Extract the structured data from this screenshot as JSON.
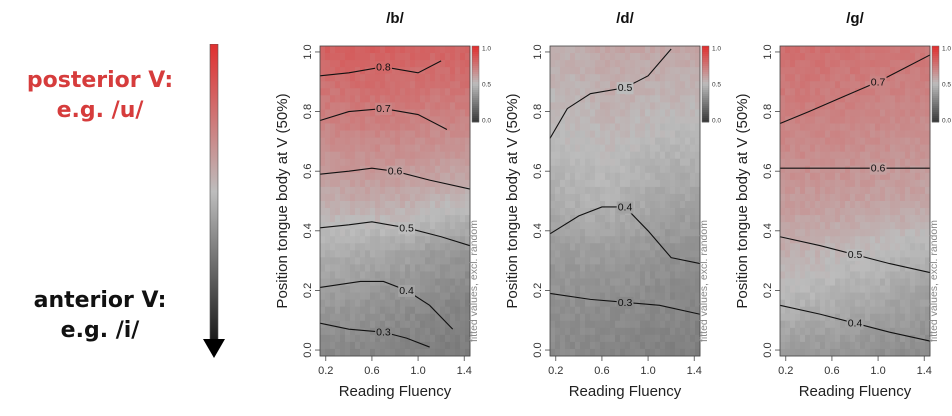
{
  "sidebar": {
    "posterior_line1": "posterior V:",
    "posterior_line2": "e.g. /u/",
    "anterior_line1": "anterior V:",
    "anterior_line2": "e.g. /i/",
    "posterior_color": "#d63c3c",
    "anterior_color": "#111111"
  },
  "chart_data": [
    {
      "type": "heatmap",
      "title": "/b/",
      "xlabel": "Reading Fluency",
      "ylabel": "Position tongue body at V (50%)",
      "colorbar_label": "fitted values, excl. random",
      "colorbar_ticks": [
        "1.0",
        "0.5",
        "0.0"
      ],
      "xlim": [
        0.15,
        1.45
      ],
      "ylim": [
        -0.02,
        1.02
      ],
      "xticks": [
        0.2,
        0.6,
        1.0,
        1.4
      ],
      "yticks": [
        0.0,
        0.2,
        0.4,
        0.6,
        0.8,
        1.0
      ],
      "colorscale": [
        "#3a3a3a",
        "#bcbcbc",
        "#e03030"
      ],
      "field": [
        [
          0.3,
          0.29,
          0.28,
          0.27,
          0.26,
          0.25
        ],
        [
          0.37,
          0.36,
          0.34,
          0.32,
          0.3,
          0.28
        ],
        [
          0.44,
          0.44,
          0.42,
          0.4,
          0.37,
          0.35
        ],
        [
          0.55,
          0.57,
          0.57,
          0.56,
          0.53,
          0.52
        ],
        [
          0.65,
          0.67,
          0.67,
          0.66,
          0.65,
          0.64
        ],
        [
          0.74,
          0.76,
          0.76,
          0.75,
          0.74,
          0.74
        ],
        [
          0.83,
          0.84,
          0.83,
          0.82,
          0.82,
          0.83
        ]
      ],
      "contours": [
        {
          "label": "0.8",
          "points": [
            [
              0.15,
              0.92
            ],
            [
              0.4,
              0.93
            ],
            [
              0.7,
              0.95
            ],
            [
              1.0,
              0.93
            ],
            [
              1.2,
              0.97
            ]
          ]
        },
        {
          "label": "0.7",
          "points": [
            [
              0.15,
              0.77
            ],
            [
              0.4,
              0.8
            ],
            [
              0.7,
              0.81
            ],
            [
              1.0,
              0.79
            ],
            [
              1.25,
              0.74
            ]
          ]
        },
        {
          "label": "0.6",
          "points": [
            [
              0.15,
              0.59
            ],
            [
              0.4,
              0.6
            ],
            [
              0.6,
              0.61
            ],
            [
              0.8,
              0.6
            ],
            [
              1.1,
              0.57
            ],
            [
              1.45,
              0.54
            ]
          ]
        },
        {
          "label": "0.5",
          "points": [
            [
              0.15,
              0.41
            ],
            [
              0.4,
              0.42
            ],
            [
              0.6,
              0.43
            ],
            [
              0.9,
              0.41
            ],
            [
              1.2,
              0.38
            ],
            [
              1.45,
              0.35
            ]
          ]
        },
        {
          "label": "0.4",
          "points": [
            [
              0.15,
              0.21
            ],
            [
              0.5,
              0.23
            ],
            [
              0.7,
              0.23
            ],
            [
              0.9,
              0.2
            ],
            [
              1.1,
              0.15
            ],
            [
              1.3,
              0.07
            ]
          ]
        },
        {
          "label": "0.3",
          "points": [
            [
              0.15,
              0.09
            ],
            [
              0.4,
              0.07
            ],
            [
              0.7,
              0.06
            ],
            [
              0.9,
              0.04
            ],
            [
              1.1,
              0.01
            ]
          ]
        }
      ]
    },
    {
      "type": "heatmap",
      "title": "/d/",
      "xlabel": "Reading Fluency",
      "ylabel": "Position tongue body at V (50%)",
      "colorbar_label": "fitted values, excl. random",
      "colorbar_ticks": [
        "1.0",
        "0.5",
        "0.0"
      ],
      "xlim": [
        0.15,
        1.45
      ],
      "ylim": [
        -0.02,
        1.02
      ],
      "xticks": [
        0.2,
        0.6,
        1.0,
        1.4
      ],
      "yticks": [
        0.0,
        0.2,
        0.4,
        0.6,
        0.8,
        1.0
      ],
      "colorscale": [
        "#3a3a3a",
        "#bcbcbc",
        "#e03030"
      ],
      "field": [
        [
          0.31,
          0.3,
          0.29,
          0.28,
          0.27,
          0.26
        ],
        [
          0.33,
          0.33,
          0.32,
          0.31,
          0.3,
          0.29
        ],
        [
          0.37,
          0.38,
          0.38,
          0.36,
          0.34,
          0.33
        ],
        [
          0.44,
          0.46,
          0.46,
          0.43,
          0.41,
          0.4
        ],
        [
          0.49,
          0.5,
          0.51,
          0.49,
          0.47,
          0.47
        ],
        [
          0.52,
          0.53,
          0.55,
          0.54,
          0.53,
          0.53
        ],
        [
          0.55,
          0.56,
          0.58,
          0.58,
          0.58,
          0.58
        ]
      ],
      "contours": [
        {
          "label": "0.5",
          "points": [
            [
              0.15,
              0.71
            ],
            [
              0.3,
              0.81
            ],
            [
              0.5,
              0.86
            ],
            [
              0.8,
              0.88
            ],
            [
              1.0,
              0.92
            ],
            [
              1.2,
              1.01
            ]
          ]
        },
        {
          "label": "0.4",
          "points": [
            [
              0.15,
              0.39
            ],
            [
              0.4,
              0.45
            ],
            [
              0.6,
              0.48
            ],
            [
              0.8,
              0.48
            ],
            [
              1.0,
              0.4
            ],
            [
              1.2,
              0.31
            ],
            [
              1.45,
              0.29
            ]
          ]
        },
        {
          "label": "0.3",
          "points": [
            [
              0.15,
              0.19
            ],
            [
              0.5,
              0.17
            ],
            [
              0.8,
              0.16
            ],
            [
              1.1,
              0.15
            ],
            [
              1.45,
              0.12
            ]
          ]
        }
      ]
    },
    {
      "type": "heatmap",
      "title": "/g/",
      "xlabel": "Reading Fluency",
      "ylabel": "Position tongue body at V (50%)",
      "colorbar_label": "fitted values, excl. random",
      "colorbar_ticks": [
        "1.0",
        "0.5",
        "0.0"
      ],
      "xlim": [
        0.15,
        1.45
      ],
      "ylim": [
        -0.02,
        1.02
      ],
      "xticks": [
        0.2,
        0.6,
        1.0,
        1.4
      ],
      "yticks": [
        0.0,
        0.2,
        0.4,
        0.6,
        0.8,
        1.0
      ],
      "colorscale": [
        "#3a3a3a",
        "#bcbcbc",
        "#e03030"
      ],
      "field": [
        [
          0.37,
          0.36,
          0.35,
          0.33,
          0.32,
          0.31
        ],
        [
          0.47,
          0.46,
          0.44,
          0.42,
          0.4,
          0.38
        ],
        [
          0.55,
          0.54,
          0.52,
          0.5,
          0.48,
          0.46
        ],
        [
          0.62,
          0.62,
          0.61,
          0.6,
          0.59,
          0.58
        ],
        [
          0.68,
          0.68,
          0.67,
          0.66,
          0.65,
          0.64
        ],
        [
          0.73,
          0.73,
          0.72,
          0.71,
          0.7,
          0.7
        ],
        [
          0.78,
          0.78,
          0.77,
          0.76,
          0.75,
          0.75
        ]
      ],
      "contours": [
        {
          "label": "0.7",
          "points": [
            [
              0.15,
              0.76
            ],
            [
              0.4,
              0.8
            ],
            [
              0.7,
              0.85
            ],
            [
              1.0,
              0.9
            ],
            [
              1.2,
              0.94
            ],
            [
              1.45,
              0.99
            ]
          ]
        },
        {
          "label": "0.6",
          "points": [
            [
              0.15,
              0.61
            ],
            [
              0.6,
              0.61
            ],
            [
              1.0,
              0.61
            ],
            [
              1.45,
              0.61
            ]
          ]
        },
        {
          "label": "0.5",
          "points": [
            [
              0.15,
              0.38
            ],
            [
              0.5,
              0.35
            ],
            [
              0.8,
              0.32
            ],
            [
              1.1,
              0.29
            ],
            [
              1.45,
              0.26
            ]
          ]
        },
        {
          "label": "0.4",
          "points": [
            [
              0.15,
              0.15
            ],
            [
              0.5,
              0.12
            ],
            [
              0.8,
              0.09
            ],
            [
              1.1,
              0.06
            ],
            [
              1.45,
              0.03
            ]
          ]
        }
      ]
    }
  ]
}
